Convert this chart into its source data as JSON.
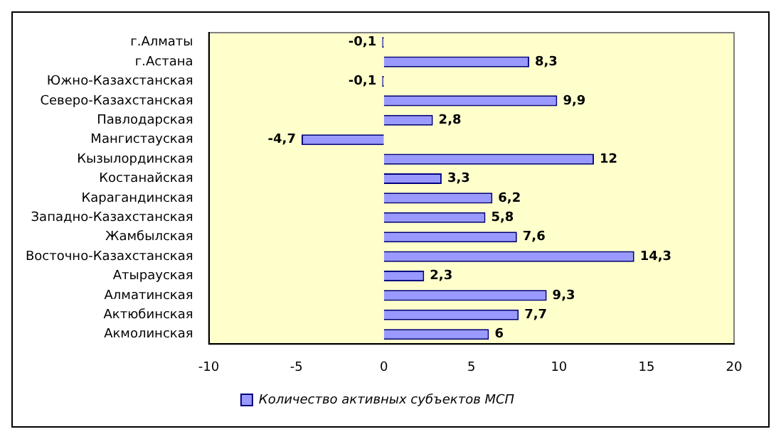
{
  "chart_data": {
    "type": "bar",
    "orientation": "horizontal",
    "categories": [
      "г.Алматы",
      "г.Астана",
      "Южно-Казахстанская",
      "Северо-Казахстанская",
      "Павлодарская",
      "Мангистауская",
      "Кызылординская",
      "Костанайская",
      "Карагандинская",
      "Западно-Казахстанская",
      "Жамбылская",
      "Восточно-Казахстанская",
      "Атырауская",
      "Алматинская",
      "Актюбинская",
      "Акмолинская"
    ],
    "series": [
      {
        "name": "Количество активных субъектов МСП",
        "color": "#9999ff",
        "values": [
          -0.1,
          8.3,
          -0.1,
          9.9,
          2.8,
          -4.7,
          12,
          3.3,
          6.2,
          5.8,
          7.6,
          14.3,
          2.3,
          9.3,
          7.7,
          6
        ],
        "value_labels": [
          "-0,1",
          "8,3",
          "-0,1",
          "9,9",
          "2,8",
          "-4,7",
          "12",
          "3,3",
          "6,2",
          "5,8",
          "7,6",
          "14,3",
          "2,3",
          "9,3",
          "7,7",
          "6"
        ]
      }
    ],
    "xlim": [
      -10,
      20
    ],
    "xticks": [
      -10,
      -5,
      0,
      5,
      10,
      15,
      20
    ],
    "grid": false,
    "legend": "bottom"
  }
}
